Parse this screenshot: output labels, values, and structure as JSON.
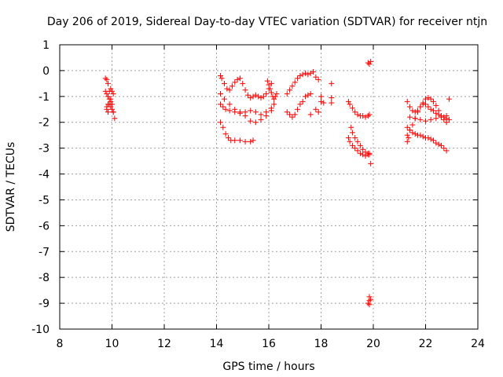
{
  "chart_data": {
    "type": "scatter",
    "title": "Day 206 of 2019, Sidereal Day-to-day VTEC variation (SDTVAR) for receiver ntjn",
    "xlabel": "GPS time / hours",
    "ylabel": "SDTVAR / TECUs",
    "xlim": [
      8,
      24
    ],
    "ylim": [
      -10,
      1
    ],
    "xticks": [
      "8",
      "10",
      "12",
      "14",
      "16",
      "18",
      "20",
      "22",
      "24"
    ],
    "yticks": [
      "1",
      "0",
      "-1",
      "-2",
      "-3",
      "-4",
      "-5",
      "-6",
      "-7",
      "-8",
      "-9",
      "-10"
    ],
    "grid": true,
    "marker": "+",
    "color": "#ff0000",
    "series": [
      {
        "name": "SDTVAR",
        "x": [
          9.75,
          9.8,
          9.85,
          9.9,
          9.95,
          10.0,
          10.05,
          10.1,
          9.75,
          9.8,
          9.85,
          9.9,
          9.95,
          10.0,
          10.05,
          9.8,
          9.85,
          9.9,
          9.95,
          10.0,
          10.05,
          9.8,
          9.85,
          9.95,
          14.15,
          14.2,
          14.3,
          14.4,
          14.5,
          14.6,
          14.7,
          14.8,
          14.9,
          15.0,
          15.1,
          15.2,
          15.3,
          15.4,
          15.5,
          15.6,
          15.7,
          15.8,
          15.9,
          16.0,
          16.1,
          14.15,
          14.25,
          14.35,
          14.5,
          14.7,
          14.9,
          15.1,
          15.3,
          15.5,
          15.7,
          15.9,
          16.1,
          14.15,
          14.3,
          14.5,
          14.7,
          14.9,
          15.1,
          15.3,
          15.5,
          15.7,
          15.9,
          16.1,
          16.2,
          14.15,
          14.25,
          14.35,
          14.45,
          14.55,
          14.7,
          14.9,
          15.1,
          15.3,
          15.4,
          15.95,
          16.0,
          16.05,
          16.1,
          16.15,
          16.2,
          16.25,
          16.3,
          16.7,
          16.8,
          16.9,
          17.0,
          17.1,
          17.2,
          17.3,
          17.4,
          17.5,
          17.6,
          17.7,
          17.8,
          17.9,
          16.7,
          16.8,
          16.9,
          17.0,
          17.1,
          17.2,
          17.3,
          17.4,
          17.5,
          17.6,
          17.6,
          17.8,
          17.9,
          18.0,
          18.1,
          18.4,
          18.4,
          18.4,
          18.0,
          19.05,
          19.1,
          19.2,
          19.3,
          19.4,
          19.5,
          19.6,
          19.7,
          19.8,
          19.85,
          19.05,
          19.1,
          19.2,
          19.3,
          19.4,
          19.5,
          19.6,
          19.7,
          19.8,
          19.85,
          19.9,
          19.15,
          19.2,
          19.3,
          19.4,
          19.5,
          19.6,
          19.7,
          19.8,
          19.85,
          19.8,
          19.85,
          19.9,
          19.85,
          19.9,
          19.8,
          19.85,
          19.85,
          21.3,
          21.4,
          21.5,
          21.6,
          21.7,
          21.8,
          21.9,
          22.0,
          22.1,
          22.2,
          22.3,
          22.4,
          22.5,
          22.6,
          22.7,
          22.8,
          21.3,
          21.4,
          21.5,
          21.6,
          21.7,
          21.8,
          21.9,
          22.0,
          22.1,
          22.2,
          22.3,
          22.4,
          22.5,
          22.6,
          22.7,
          22.8,
          22.9,
          21.3,
          21.4,
          21.5,
          21.6,
          21.7,
          21.8,
          21.9,
          22.0,
          22.1,
          22.2,
          22.3,
          22.4,
          22.5,
          22.6,
          22.7,
          22.8,
          21.4,
          21.6,
          21.8,
          22.0,
          22.2,
          22.4,
          22.6,
          22.8,
          22.9,
          21.3,
          21.35
        ],
        "y": [
          -0.3,
          -0.35,
          -0.5,
          -0.8,
          -1.1,
          -1.3,
          -1.6,
          -1.85,
          -0.8,
          -0.9,
          -1.0,
          -1.3,
          -1.4,
          -1.5,
          -1.6,
          -1.5,
          -1.3,
          -1.1,
          -0.7,
          -0.8,
          -0.9,
          -1.4,
          -1.6,
          -1.2,
          -0.2,
          -0.3,
          -0.5,
          -0.7,
          -0.75,
          -0.6,
          -0.45,
          -0.35,
          -0.3,
          -0.5,
          -0.75,
          -0.95,
          -1.05,
          -1.0,
          -0.95,
          -1.0,
          -1.05,
          -1.0,
          -0.9,
          -0.7,
          -0.5,
          -1.3,
          -1.4,
          -1.5,
          -1.55,
          -1.6,
          -1.65,
          -1.6,
          -1.55,
          -1.6,
          -1.7,
          -1.6,
          -1.45,
          -0.9,
          -1.1,
          -1.3,
          -1.5,
          -1.6,
          -1.75,
          -1.95,
          -2.0,
          -1.9,
          -1.75,
          -1.55,
          -1.3,
          -2.0,
          -2.2,
          -2.45,
          -2.6,
          -2.7,
          -2.7,
          -2.7,
          -2.75,
          -2.75,
          -2.7,
          -0.4,
          -0.55,
          -0.7,
          -0.85,
          -1.0,
          -1.1,
          -1.0,
          -0.9,
          -0.9,
          -0.75,
          -0.6,
          -0.45,
          -0.3,
          -0.2,
          -0.15,
          -0.1,
          -0.15,
          -0.1,
          -0.05,
          -0.25,
          -0.35,
          -1.6,
          -1.7,
          -1.8,
          -1.7,
          -1.5,
          -1.3,
          -1.2,
          -1.0,
          -0.95,
          -0.9,
          -1.7,
          -1.5,
          -1.6,
          -1.2,
          -1.25,
          -1.05,
          -1.25,
          -0.5,
          -1.0,
          -1.2,
          -1.3,
          -1.45,
          -1.6,
          -1.7,
          -1.75,
          -1.75,
          -1.8,
          -1.75,
          -1.7,
          -2.6,
          -2.75,
          -2.9,
          -3.0,
          -3.1,
          -3.2,
          -3.25,
          -3.3,
          -3.25,
          -3.2,
          -3.6,
          -2.2,
          -2.4,
          -2.6,
          -2.75,
          -2.9,
          -3.05,
          -3.15,
          -3.2,
          -3.25,
          0.3,
          0.25,
          0.35,
          -8.75,
          -8.85,
          -9.0,
          -9.05,
          -8.9,
          -1.2,
          -1.4,
          -1.55,
          -1.6,
          -1.55,
          -1.4,
          -1.3,
          -1.3,
          -1.4,
          -1.5,
          -1.55,
          -1.65,
          -1.7,
          -1.75,
          -1.8,
          -1.85,
          -2.5,
          -2.3,
          -2.1,
          -1.85,
          -1.6,
          -1.4,
          -1.25,
          -1.1,
          -1.05,
          -1.1,
          -1.2,
          -1.35,
          -1.55,
          -1.75,
          -1.9,
          -2.0,
          -1.9,
          -2.2,
          -2.3,
          -2.4,
          -2.45,
          -2.5,
          -2.5,
          -2.55,
          -2.6,
          -2.6,
          -2.65,
          -2.7,
          -2.8,
          -2.85,
          -2.9,
          -3.0,
          -3.1,
          -1.8,
          -1.85,
          -1.9,
          -1.95,
          -1.9,
          -1.85,
          -1.8,
          -1.75,
          -1.1,
          -2.75,
          -2.6
        ]
      }
    ]
  }
}
